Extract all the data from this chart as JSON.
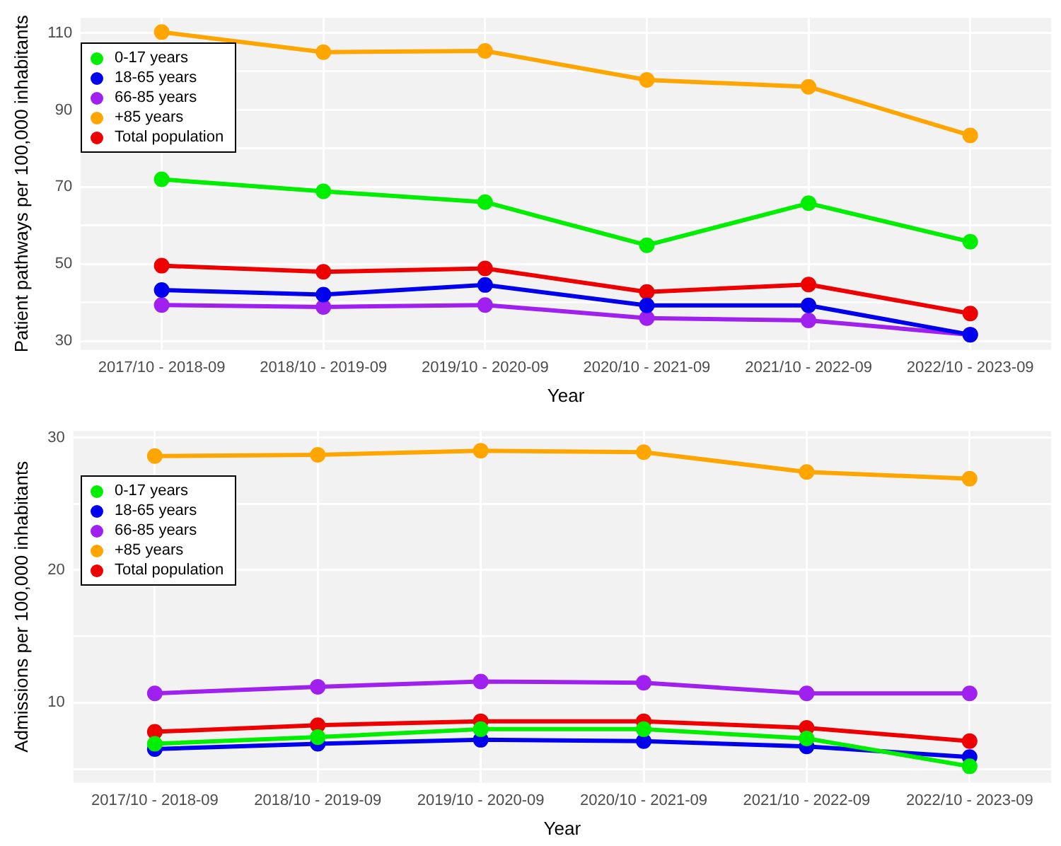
{
  "chart_data": [
    {
      "type": "line",
      "xlabel": "Year",
      "ylabel": "Patient pathways per 100,000 inhabitants",
      "categories": [
        "2017/10 - 2018-09",
        "2018/10 - 2019-09",
        "2019/10 - 2020-09",
        "2020/10 - 2021-09",
        "2021/10 - 2022-09",
        "2022/10 - 2023-09"
      ],
      "series": [
        {
          "name": "0-17 years",
          "color": "#00ee00",
          "values": [
            72,
            68.9,
            66.1,
            54.9,
            65.8,
            55.8
          ]
        },
        {
          "name": "18-65 years",
          "color": "#0000ee",
          "values": [
            43.3,
            42.1,
            44.6,
            39.3,
            39.3,
            31.7
          ]
        },
        {
          "name": "66-85 years",
          "color": "#a020f0",
          "values": [
            39.4,
            38.9,
            39.4,
            36,
            35.4,
            31.7
          ]
        },
        {
          "name": "+85 years",
          "color": "#ffa500",
          "values": [
            110.2,
            105,
            105.3,
            97.8,
            96,
            83.4
          ]
        },
        {
          "name": "Total population",
          "color": "#ee0000",
          "values": [
            49.6,
            48,
            48.9,
            42.8,
            44.7,
            37.2
          ]
        }
      ],
      "ylim": [
        27.8,
        113.9
      ],
      "yticks": [
        30,
        {
          "value": 40,
          "label": null
        },
        50,
        {
          "value": 60,
          "label": null
        },
        70,
        {
          "value": 80,
          "label": null
        },
        90,
        {
          "value": 100,
          "label": null
        },
        110
      ],
      "grid": true,
      "legend": "top left",
      "marker": "circle"
    },
    {
      "type": "line",
      "xlabel": "Year",
      "ylabel": "Admissions per 100,000 inhabitants",
      "categories": [
        "2017/10 - 2018-09",
        "2018/10 - 2019-09",
        "2019/10 - 2020-09",
        "2020/10 - 2021-09",
        "2021/10 - 2022-09",
        "2022/10 - 2023-09"
      ],
      "series": [
        {
          "name": "0-17 years",
          "color": "#00ee00",
          "values": [
            6.9,
            7.4,
            8,
            8,
            7.3,
            5.2
          ]
        },
        {
          "name": "18-65 years",
          "color": "#0000ee",
          "values": [
            6.5,
            6.9,
            7.2,
            7.1,
            6.7,
            5.9
          ]
        },
        {
          "name": "66-85 years",
          "color": "#a020f0",
          "values": [
            10.7,
            11.2,
            11.6,
            11.5,
            10.7,
            10.7
          ]
        },
        {
          "name": "+85 years",
          "color": "#ffa500",
          "values": [
            28.6,
            28.7,
            29,
            28.9,
            27.4,
            26.9
          ]
        },
        {
          "name": "Total population",
          "color": "#ee0000",
          "values": [
            7.8,
            8.3,
            8.6,
            8.6,
            8.1,
            7.1
          ]
        }
      ],
      "ylim": [
        3.97,
        30.5
      ],
      "yticks": [
        {
          "value": 5,
          "label": null
        },
        10,
        {
          "value": 15,
          "label": null
        },
        20,
        {
          "value": 25,
          "label": null
        },
        30
      ],
      "grid": true,
      "legend": "top left",
      "marker": "circle"
    }
  ]
}
